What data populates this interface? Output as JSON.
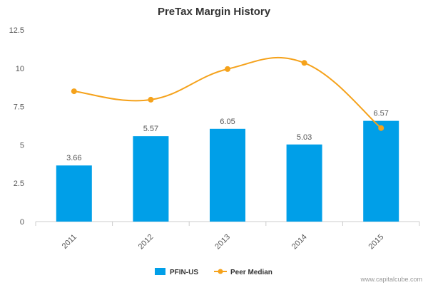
{
  "chart_data": {
    "type": "bar",
    "title": "PreTax Margin History",
    "categories": [
      "2011",
      "2012",
      "2013",
      "2014",
      "2015"
    ],
    "series": [
      {
        "name": "PFIN-US",
        "type": "bar",
        "color": "#009fe8",
        "values": [
          3.66,
          5.57,
          6.05,
          5.03,
          6.57
        ],
        "data_labels": [
          "3.66",
          "5.57",
          "6.05",
          "5.03",
          "6.57"
        ]
      },
      {
        "name": "Peer Median",
        "type": "line",
        "color": "#f5a21b",
        "values": [
          8.5,
          7.95,
          9.95,
          10.35,
          6.1
        ]
      }
    ],
    "ylim": [
      0,
      12.5
    ],
    "yticks": [
      0,
      2.5,
      5,
      7.5,
      10,
      12.5
    ],
    "ytick_labels": [
      "0",
      "2.5",
      "5",
      "7.5",
      "10",
      "12.5"
    ],
    "grid": false,
    "legend_position": "bottom"
  },
  "credit": "www.capitalcube.com"
}
